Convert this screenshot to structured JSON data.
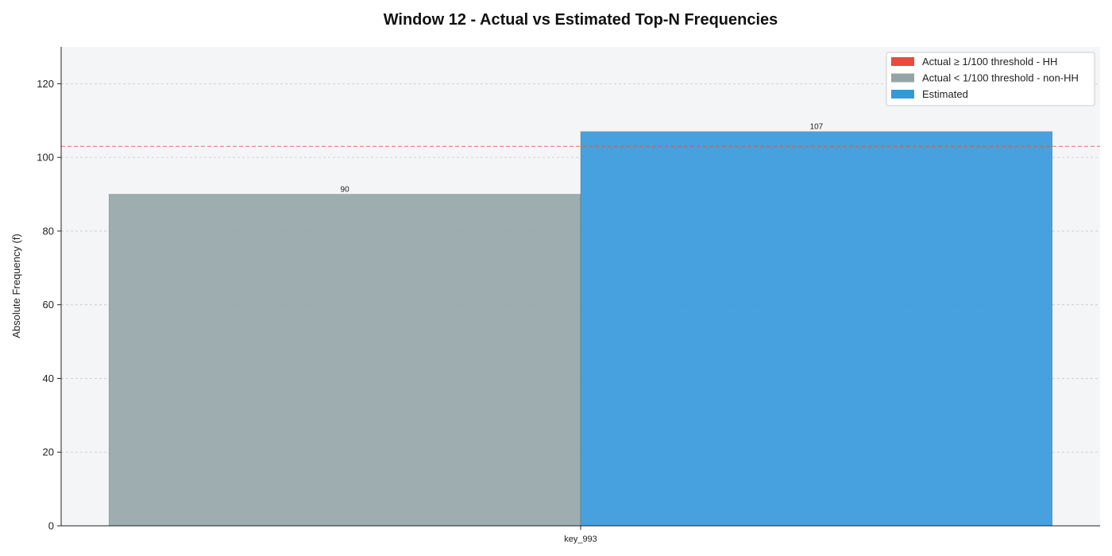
{
  "chart_data": {
    "type": "bar",
    "title": "Window 12 - Actual vs Estimated Top-N Frequencies",
    "xlabel": "",
    "ylabel": "Absolute Frequency (f)",
    "ylim": [
      0,
      130
    ],
    "yticks": [
      0,
      20,
      40,
      60,
      80,
      100,
      120
    ],
    "grid": true,
    "legend_position": "top-right",
    "categories": [
      "key_993"
    ],
    "threshold": 103,
    "threshold_color": "#e74c3c",
    "series": [
      {
        "name": "Actual < 1/100 threshold - non-HH",
        "values": [
          90
        ],
        "color": "#95a5a6"
      },
      {
        "name": "Estimated",
        "values": [
          107
        ],
        "color": "#3498db"
      }
    ],
    "legend": [
      {
        "label": "Actual ≥ 1/100 threshold - HH",
        "color": "#e74c3c"
      },
      {
        "label": "Actual < 1/100 threshold - non-HH",
        "color": "#95a5a6"
      },
      {
        "label": "Estimated",
        "color": "#3498db"
      }
    ]
  }
}
